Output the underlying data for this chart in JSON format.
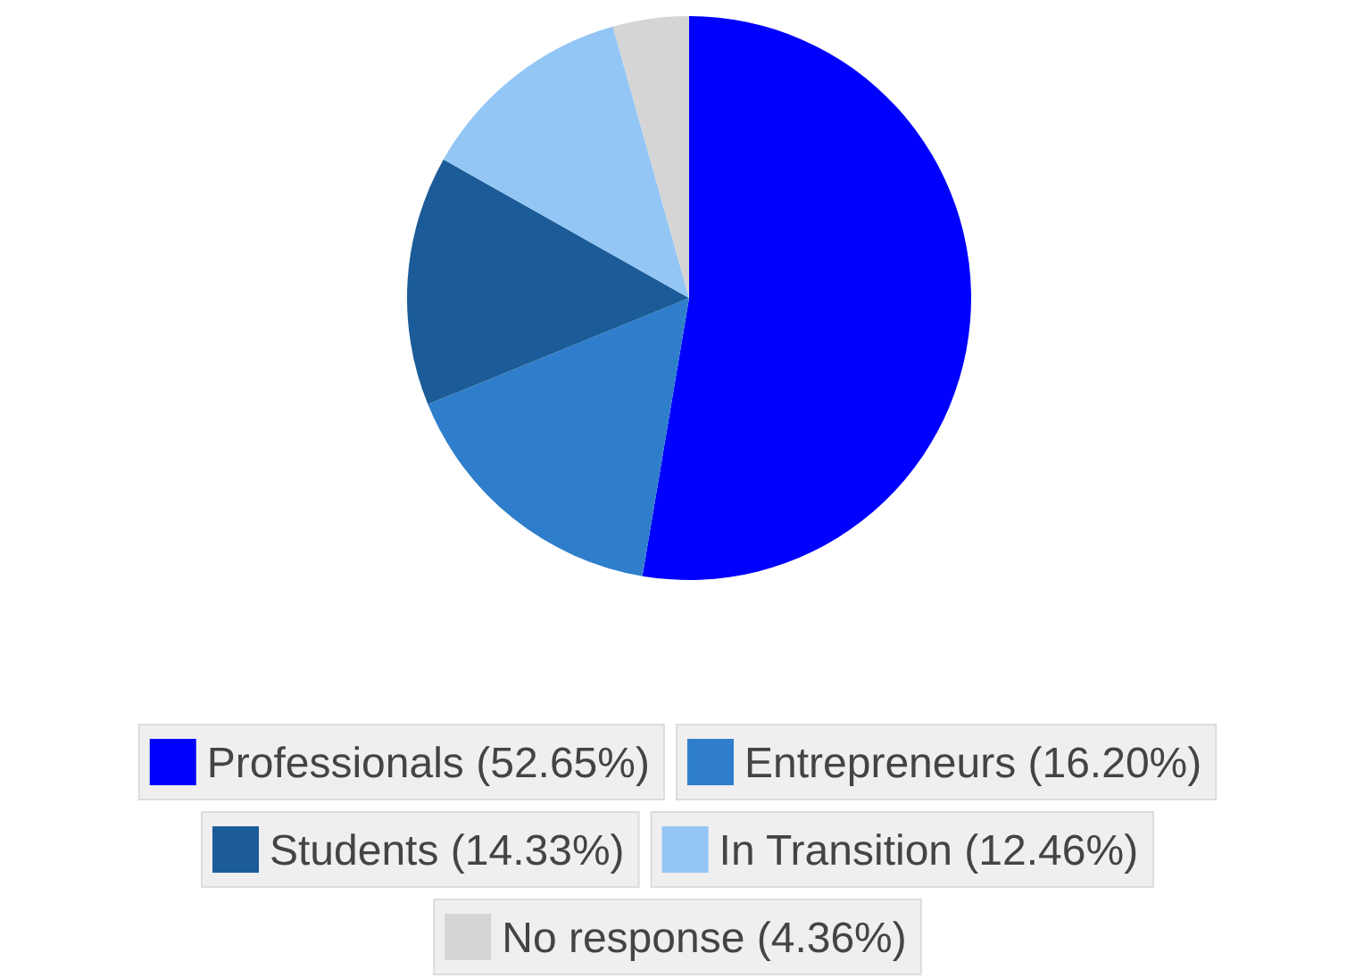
{
  "chart_data": {
    "type": "pie",
    "categories": [
      "Professionals (52.65%)",
      "Entrepreneurs (16.20%)",
      "Students (14.33%)",
      "In Transition (12.46%)",
      "No response (4.36%)"
    ],
    "values": [
      52.65,
      16.2,
      14.33,
      12.46,
      4.36
    ],
    "colors": [
      "#0000ff",
      "#2f7ecb",
      "#1b5c98",
      "#93c6f5",
      "#d5d5d5"
    ],
    "legend": "bottom"
  }
}
